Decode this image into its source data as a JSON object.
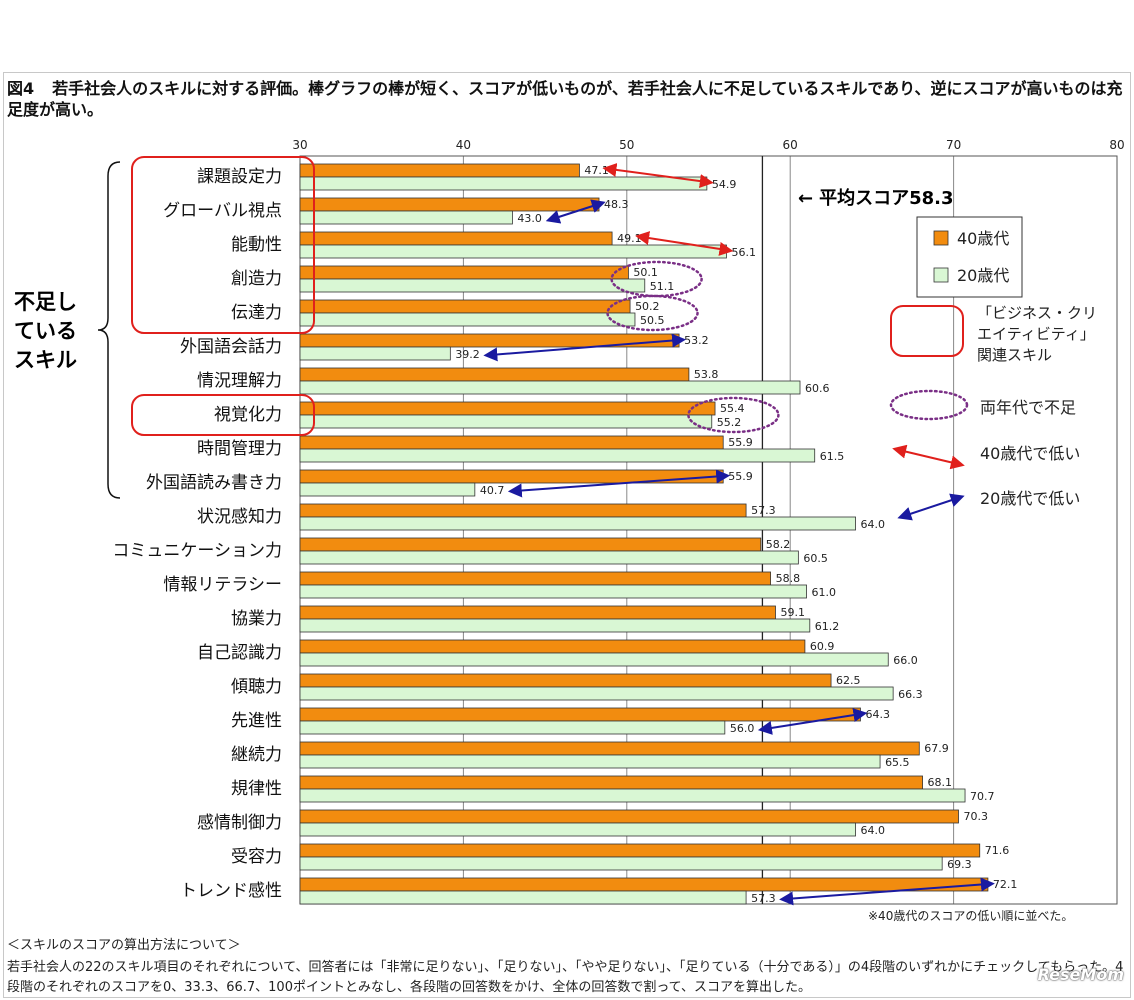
{
  "figure": {
    "number": "図4",
    "title": "若手社会人のスキルに対する評価。棒グラフの棒が短く、スコアが低いものが、若手社会人に不足しているスキルであり、逆にスコアが高いものは充足度が高い。"
  },
  "chart_data": {
    "type": "bar",
    "orientation": "horizontal",
    "xlim": [
      30,
      80
    ],
    "xticks": [
      30,
      40,
      50,
      60,
      70,
      80
    ],
    "categories": [
      "課題設定力",
      "グローバル視点",
      "能動性",
      "創造力",
      "伝達力",
      "外国語会話力",
      "情況理解力",
      "視覚化力",
      "時間管理力",
      "外国語読み書き力",
      "状況感知力",
      "コミュニケーション力",
      "情報リテラシー",
      "協業力",
      "自己認識力",
      "傾聴力",
      "先進性",
      "継続力",
      "規律性",
      "感情制御力",
      "受容力",
      "トレンド感性"
    ],
    "series": [
      {
        "name": "40歳代",
        "color": "#f28c0f",
        "values": [
          47.1,
          48.3,
          49.1,
          50.1,
          50.2,
          53.2,
          53.8,
          55.4,
          55.9,
          55.9,
          57.3,
          58.2,
          58.8,
          59.1,
          60.9,
          62.5,
          64.3,
          67.9,
          68.1,
          70.3,
          71.6,
          72.1
        ]
      },
      {
        "name": "20歳代",
        "color": "#d9f7d4",
        "values": [
          54.9,
          43.0,
          56.1,
          51.1,
          50.5,
          39.2,
          60.6,
          55.2,
          61.5,
          40.7,
          64.0,
          60.5,
          61.0,
          61.2,
          66.0,
          66.3,
          56.0,
          65.5,
          70.7,
          64.0,
          69.3,
          57.3
        ]
      }
    ],
    "value_labels": {
      "40s": [
        "47.1",
        "48.3",
        "49.1",
        "50.1",
        "50.2",
        "53.2",
        "53.8",
        "55.4",
        "55.9",
        "55.9",
        "57.3",
        "58.2",
        "58.8",
        "59.1",
        "60.9",
        "62.5",
        "64.3",
        "67.9",
        "68.1",
        "70.3",
        "71.6",
        "72.1"
      ],
      "20s": [
        "54.9",
        "43.0",
        "56.1",
        "51.1",
        "50.5",
        "39.2",
        "60.6",
        "55.2",
        "61.5",
        "40.7",
        "64.0",
        "60.5",
        "61.0",
        "61.2",
        "66.0",
        "66.3",
        "56.0",
        "65.5",
        "70.7",
        "64.0",
        "69.3",
        "57.3"
      ]
    },
    "average": {
      "value": 58.3,
      "label": "平均スコア58.3",
      "arrow": "←"
    },
    "shortage_group": {
      "label": "不足している スキル",
      "from": 0,
      "to": 9
    },
    "red_boxes": [
      {
        "from": 0,
        "to": 4
      },
      {
        "from": 7,
        "to": 7
      }
    ],
    "both_low_circles": [
      3,
      4,
      7
    ],
    "arrows_40s_low": [
      0,
      2
    ],
    "arrows_20s_low": [
      1,
      5,
      9,
      16,
      21
    ],
    "legend": {
      "s40": "40歳代",
      "s20": "20歳代",
      "red_box": "「ビジネス・クリエイティビティ」関連スキル",
      "red_box_lines": [
        "「ビジネス・クリ",
        "エイティビティ」",
        "関連スキル"
      ],
      "dotted_circle": "両年代で不足",
      "red_arrow": "40歳代で低い",
      "blue_arrow": "20歳代で低い"
    },
    "colors": {
      "bar40": "#f28c0f",
      "bar20": "#d9f7d4",
      "red": "#e0201c",
      "blue": "#1a1aa0",
      "purple": "#7a2f86",
      "grid": "#888888"
    }
  },
  "shortage_label": "不足している スキル",
  "shortage_lines": [
    "不足し",
    "ている",
    "スキル"
  ],
  "footnote": "※40歳代のスコアの低い順に並べた。",
  "method": {
    "heading": "＜スキルのスコアの算出方法について＞",
    "body": "若手社会人の22のスキル項目のそれぞれについて、回答者には「非常に足りない」、「足りない」、「やや足りない」、「足りている（十分である）」の4段階のいずれかにチェックしてもらった。4段階のそれぞれのスコアを0、33.3、66.7、100ポイントとみなし、各段階の回答数をかけ、全体の回答数で割って、スコアを算出した。"
  },
  "watermark": "ReseMom"
}
